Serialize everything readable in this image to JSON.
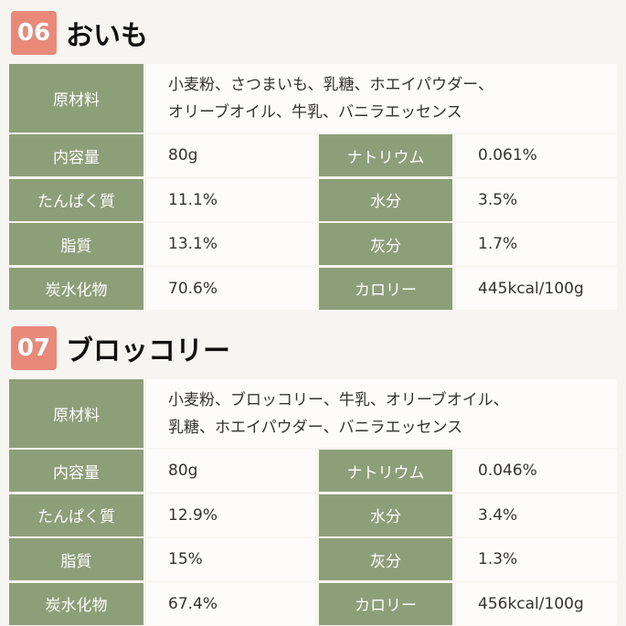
{
  "sections": [
    {
      "number": "06",
      "title": "おいも",
      "ingredients_label": "原材料",
      "ingredients": [
        "小麦粉、さつまいも、乳糖、ホエイパウダー、",
        "オリーブオイル、牛乳、バニラエッセンス"
      ],
      "rows": [
        [
          "内容量",
          "80g",
          "ナトリウム",
          "0.061%"
        ],
        [
          "たんぱく質",
          "11.1%",
          "水分",
          "3.5%"
        ],
        [
          "脂質",
          "13.1%",
          "灰分",
          "1.7%"
        ],
        [
          "炭水化物",
          "70.6%",
          "カロリー",
          "445kcal/100g"
        ]
      ]
    },
    {
      "number": "07",
      "title": "ブロッコリー",
      "ingredients_label": "原材料",
      "ingredients": [
        "小麦粉、ブロッコリー、牛乳、オリーブオイル、",
        "乳糖、ホエイパウダー、バニラエッセンス"
      ],
      "rows": [
        [
          "内容量",
          "80g",
          "ナトリウム",
          "0.046%"
        ],
        [
          "たんぱく質",
          "12.9%",
          "水分",
          "3.4%"
        ],
        [
          "脂質",
          "15%",
          "灰分",
          "1.3%"
        ],
        [
          "炭水化物",
          "67.4%",
          "カロリー",
          "456kcal/100g"
        ]
      ]
    }
  ]
}
